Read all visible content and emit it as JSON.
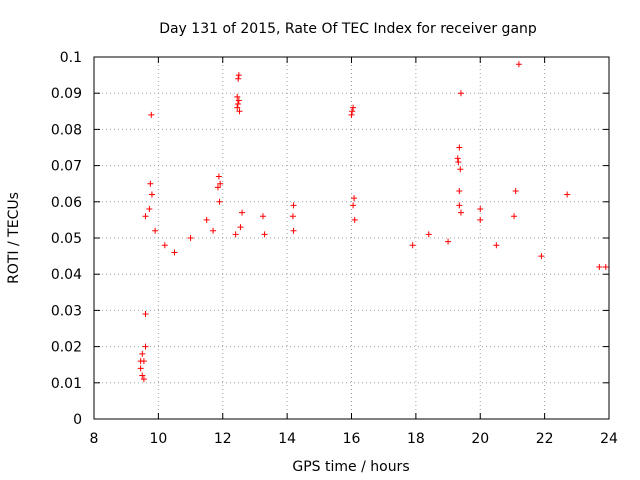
{
  "chart_data": {
    "type": "scatter",
    "title": "Day 131 of 2015, Rate Of TEC Index for receiver ganp",
    "xlabel": "GPS time / hours",
    "ylabel": "ROTI / TECUs",
    "xlim": [
      8,
      24
    ],
    "ylim": [
      0,
      0.1
    ],
    "xticks": [
      8,
      10,
      12,
      14,
      16,
      18,
      20,
      22,
      24
    ],
    "yticks": [
      0,
      0.01,
      0.02,
      0.03,
      0.04,
      0.05,
      0.06,
      0.07,
      0.08,
      0.09,
      0.1
    ],
    "xtick_labels": [
      "8",
      "10",
      "12",
      "14",
      "16",
      "18",
      "20",
      "22",
      "24"
    ],
    "ytick_labels": [
      "0",
      "0.01",
      "0.02",
      "0.03",
      "0.04",
      "0.05",
      "0.06",
      "0.07",
      "0.08",
      "0.09",
      "0.1"
    ],
    "grid": true,
    "marker": "plus",
    "series": [
      {
        "name": "ROTI",
        "color": "#ff0000",
        "points": [
          [
            9.78,
            0.084
          ],
          [
            9.75,
            0.065
          ],
          [
            9.8,
            0.062
          ],
          [
            9.72,
            0.058
          ],
          [
            9.6,
            0.056
          ],
          [
            9.9,
            0.052
          ],
          [
            11.88,
            0.067
          ],
          [
            11.92,
            0.065
          ],
          [
            11.85,
            0.064
          ],
          [
            11.9,
            0.06
          ],
          [
            12.5,
            0.095
          ],
          [
            12.48,
            0.094
          ],
          [
            12.45,
            0.089
          ],
          [
            12.5,
            0.088
          ],
          [
            12.47,
            0.087
          ],
          [
            12.45,
            0.086
          ],
          [
            12.52,
            0.085
          ],
          [
            12.6,
            0.057
          ],
          [
            14.2,
            0.059
          ],
          [
            14.18,
            0.056
          ],
          [
            14.2,
            0.052
          ],
          [
            16.05,
            0.086
          ],
          [
            16.02,
            0.085
          ],
          [
            16.0,
            0.084
          ],
          [
            16.08,
            0.061
          ],
          [
            16.05,
            0.059
          ],
          [
            16.1,
            0.055
          ],
          [
            19.4,
            0.09
          ],
          [
            19.35,
            0.075
          ],
          [
            19.3,
            0.072
          ],
          [
            19.32,
            0.071
          ],
          [
            19.38,
            0.069
          ],
          [
            19.35,
            0.063
          ],
          [
            19.35,
            0.059
          ],
          [
            19.4,
            0.057
          ],
          [
            20.0,
            0.058
          ],
          [
            20.0,
            0.055
          ],
          [
            21.2,
            0.098
          ],
          [
            21.1,
            0.063
          ],
          [
            21.05,
            0.056
          ],
          [
            22.7,
            0.062
          ],
          [
            12.55,
            0.053
          ],
          [
            12.4,
            0.051
          ],
          [
            11.7,
            0.052
          ],
          [
            13.25,
            0.056
          ],
          [
            13.3,
            0.051
          ],
          [
            11.5,
            0.055
          ],
          [
            10.2,
            0.048
          ],
          [
            10.5,
            0.046
          ],
          [
            11.0,
            0.05
          ],
          [
            17.9,
            0.048
          ],
          [
            18.4,
            0.051
          ],
          [
            19.0,
            0.049
          ],
          [
            20.5,
            0.048
          ],
          [
            21.9,
            0.045
          ],
          [
            23.7,
            0.042
          ],
          [
            23.9,
            0.042
          ],
          [
            9.55,
            0.016
          ],
          [
            9.6,
            0.02
          ],
          [
            9.45,
            0.014
          ],
          [
            9.5,
            0.012
          ],
          [
            9.45,
            0.016
          ],
          [
            9.5,
            0.018
          ],
          [
            9.55,
            0.011
          ],
          [
            9.6,
            0.029
          ]
        ]
      }
    ]
  }
}
